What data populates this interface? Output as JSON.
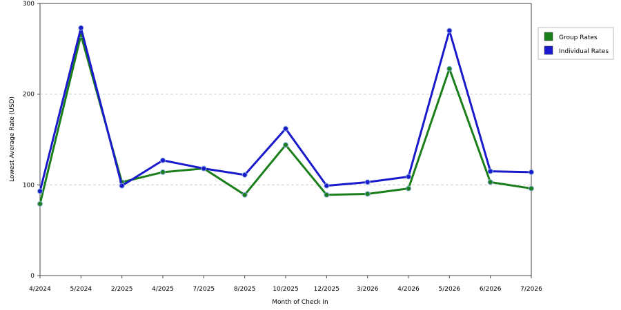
{
  "chart_data": {
    "type": "line",
    "x_label": "Month of Check In",
    "y_label": "Lowest Average Rate (USD)",
    "categories": [
      "4/2024",
      "5/2024",
      "2/2025",
      "4/2025",
      "7/2025",
      "8/2025",
      "10/2025",
      "12/2025",
      "3/2026",
      "4/2026",
      "5/2026",
      "6/2026",
      "7/2026"
    ],
    "series": [
      {
        "name": "Group Rates",
        "color": "#1a7f1a",
        "values": [
          79,
          265,
          103,
          114,
          118,
          89,
          144,
          89,
          90,
          96,
          228,
          103,
          96
        ]
      },
      {
        "name": "Individual Rates",
        "color": "#1a1acc",
        "values": [
          93,
          273,
          99,
          127,
          118,
          111,
          162,
          99,
          103,
          109,
          270,
          115,
          114
        ]
      }
    ],
    "ylim": [
      0,
      300
    ],
    "yticks": [
      0,
      100,
      200,
      300
    ],
    "grid": true,
    "legend": "right"
  }
}
